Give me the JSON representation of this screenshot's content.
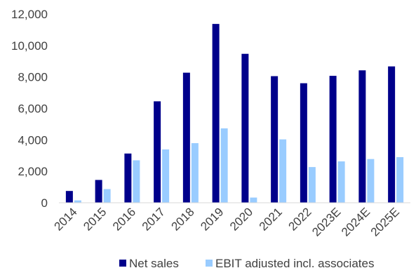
{
  "chart_data": {
    "type": "bar",
    "title": "",
    "xlabel": "",
    "ylabel": "",
    "categories": [
      "2014",
      "2015",
      "2016",
      "2017",
      "2018",
      "2019",
      "2020",
      "2021",
      "2022",
      "2023E",
      "2024E",
      "2025E"
    ],
    "series": [
      {
        "name": "Net sales",
        "color": "#00008B",
        "values": [
          750,
          1450,
          3130,
          6450,
          8270,
          11370,
          9470,
          8050,
          7600,
          8070,
          8420,
          8670
        ]
      },
      {
        "name": "EBIT adjusted incl. associates",
        "color": "#99CCFF",
        "values": [
          150,
          870,
          2700,
          3390,
          3790,
          4730,
          330,
          4030,
          2270,
          2630,
          2780,
          2900
        ]
      }
    ],
    "ylim": [
      0,
      12000
    ],
    "yticks": [
      0,
      2000,
      4000,
      6000,
      8000,
      10000,
      12000
    ],
    "ytick_labels": [
      "0",
      "2,000",
      "4,000",
      "6,000",
      "8,000",
      "10,000",
      "12,000"
    ],
    "grid": false,
    "legend_position": "bottom"
  }
}
